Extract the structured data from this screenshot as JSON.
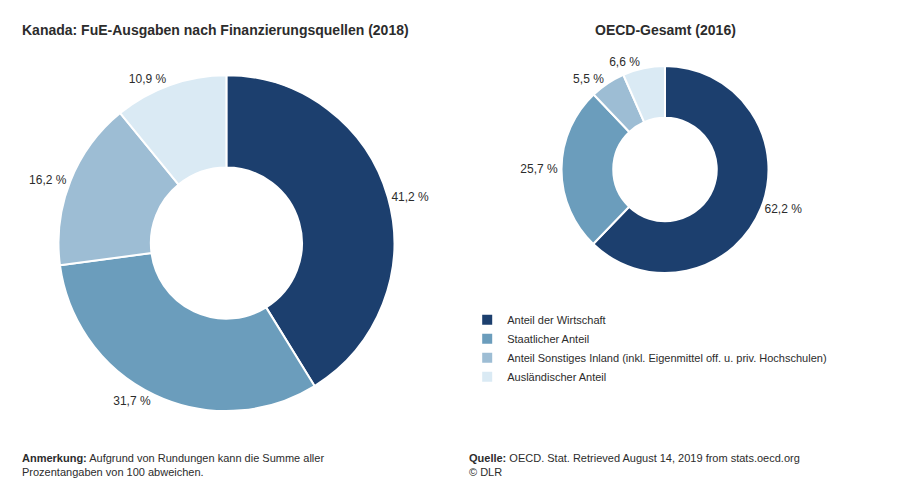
{
  "chart_data": [
    {
      "type": "pie",
      "title": "Kanada: FuE-Ausgaben nach Finanzierungsquellen (2018)",
      "categories": [
        "Anteil der Wirtschaft",
        "Staatlicher Anteil",
        "Anteil Sonstiges Inland (inkl. Eigenmittel off. u. priv. Hochschulen)",
        "Ausländischer Anteil"
      ],
      "values": [
        41.2,
        31.7,
        16.2,
        10.9
      ],
      "value_labels": [
        "41,2 %",
        "31,7 %",
        "16,2 %",
        "10,9 %"
      ],
      "colors": [
        "#1c3f6e",
        "#6b9dbc",
        "#9dbdd4",
        "#daeaf4"
      ],
      "data_labels": true,
      "legend": "lower right",
      "annotations": [
        "Anmerkung: Aufgrund von Rundungen kann die Summe aller\nProzentangaben von 100 abweichen."
      ]
    },
    {
      "type": "pie",
      "title": "OECD-Gesamt (2016)",
      "categories": [
        "Anteil der Wirtschaft",
        "Staatlicher Anteil",
        "Anteil Sonstiges Inland (inkl. Eigenmittel off. u. priv. Hochschulen)",
        "Ausländischer Anteil"
      ],
      "values": [
        62.2,
        25.7,
        5.5,
        6.6
      ],
      "value_labels": [
        "62,2 %",
        "25,7 %",
        "5,5 %",
        "6,6 %"
      ],
      "colors": [
        "#1c3f6e",
        "#6b9dbc",
        "#9dbdd4",
        "#daeaf4"
      ],
      "data_labels": true,
      "legend": "lower right",
      "annotations": [
        "Quelle: OECD. Stat. Retrieved August 14, 2019 from stats.oecd.org\n© DLR"
      ]
    }
  ]
}
